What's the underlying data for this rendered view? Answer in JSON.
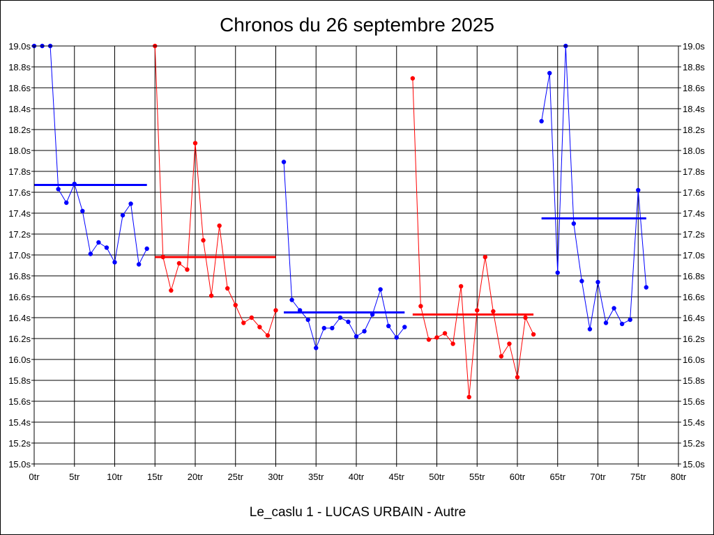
{
  "chart_data": {
    "type": "line",
    "title": "Chronos du 26 septembre 2025",
    "footer": "Le_caslu 1 - LUCAS URBAIN - Autre",
    "xlabel": "",
    "ylabel": "",
    "xlim": [
      0,
      80
    ],
    "ylim": [
      15.0,
      19.0
    ],
    "grid": true,
    "x_ticks": [
      "0tr",
      "5tr",
      "10tr",
      "15tr",
      "20tr",
      "25tr",
      "30tr",
      "35tr",
      "40tr",
      "45tr",
      "50tr",
      "55tr",
      "60tr",
      "65tr",
      "70tr",
      "75tr",
      "80tr"
    ],
    "y_ticks": [
      "15.0s",
      "15.2s",
      "15.4s",
      "15.6s",
      "15.8s",
      "16.0s",
      "16.2s",
      "16.4s",
      "16.6s",
      "16.8s",
      "17.0s",
      "17.2s",
      "17.4s",
      "17.6s",
      "17.8s",
      "18.0s",
      "18.2s",
      "18.4s",
      "18.6s",
      "18.8s",
      "19.0s"
    ],
    "series": [
      {
        "color": "#0000ff",
        "x": [
          0,
          1,
          2,
          3,
          4,
          5,
          6,
          7,
          8,
          9,
          10,
          11,
          12,
          13,
          14
        ],
        "y": [
          19.0,
          19.0,
          19.0,
          17.63,
          17.5,
          17.68,
          17.42,
          17.01,
          17.12,
          17.07,
          16.93,
          17.38,
          17.49,
          16.91,
          17.06
        ],
        "mean": 17.67
      },
      {
        "color": "#ff0000",
        "x": [
          15,
          16,
          17,
          18,
          19,
          20,
          21,
          22,
          23,
          24,
          25,
          26,
          27,
          28,
          29,
          30
        ],
        "y": [
          19.0,
          16.98,
          16.66,
          16.92,
          16.86,
          18.07,
          17.14,
          16.61,
          17.28,
          16.68,
          16.52,
          16.35,
          16.4,
          16.31,
          16.23,
          16.47
        ],
        "mean": 16.98
      },
      {
        "color": "#0000ff",
        "x": [
          31,
          32,
          33,
          34,
          35,
          36,
          37,
          38,
          39,
          40,
          41,
          42,
          43,
          44,
          45,
          46
        ],
        "y": [
          17.89,
          16.57,
          16.47,
          16.38,
          16.11,
          16.3,
          16.3,
          16.4,
          16.36,
          16.22,
          16.27,
          16.43,
          16.67,
          16.32,
          16.21,
          16.31
        ],
        "mean": 16.45
      },
      {
        "color": "#ff0000",
        "x": [
          47,
          48,
          49,
          50,
          51,
          52,
          53,
          54,
          55,
          56,
          57,
          58,
          59,
          60,
          61,
          62
        ],
        "y": [
          18.69,
          16.51,
          16.19,
          16.21,
          16.25,
          16.15,
          16.7,
          15.64,
          16.47,
          16.98,
          16.46,
          16.03,
          16.15,
          15.83,
          16.4,
          16.24
        ],
        "mean": 16.43
      },
      {
        "color": "#0000ff",
        "x": [
          63,
          64,
          65,
          66,
          67,
          68,
          69,
          70,
          71,
          72,
          73,
          74,
          75,
          76
        ],
        "y": [
          18.28,
          18.74,
          16.83,
          19.0,
          17.3,
          16.75,
          16.29,
          16.74,
          16.35,
          16.49,
          16.34,
          16.38,
          17.62,
          16.69
        ],
        "mean": 17.35
      }
    ]
  }
}
